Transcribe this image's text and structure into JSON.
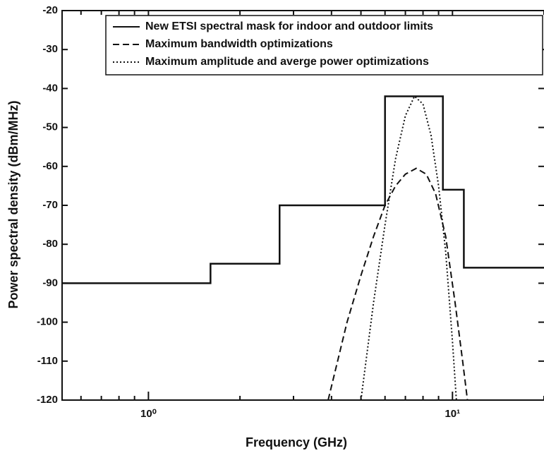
{
  "chart_data": {
    "type": "line",
    "xlabel": "Frequency (GHz)",
    "ylabel": "Power spectral density (dBm/MHz)",
    "xscale": "log",
    "xlim": [
      0.52,
      20
    ],
    "ylim": [
      -120,
      -20
    ],
    "xticks": [
      {
        "value": 1,
        "label": "10⁰"
      },
      {
        "value": 10,
        "label": "10¹"
      }
    ],
    "xminorticks": [
      0.6,
      0.7,
      0.8,
      0.9,
      2,
      3,
      4,
      5,
      6,
      7,
      8,
      9,
      20
    ],
    "yticks": [
      -20,
      -30,
      -40,
      -50,
      -60,
      -70,
      -80,
      -90,
      -100,
      -110,
      -120
    ],
    "legend": "upper right",
    "series": [
      {
        "name": "New ETSI spectral mask for indoor and outdoor limits",
        "color": "#111111",
        "style": "solid",
        "x": [
          0.52,
          1.6,
          1.6,
          2.7,
          2.7,
          6,
          6,
          9.3,
          9.3,
          10.9,
          10.9,
          20
        ],
        "values": [
          -90,
          -90,
          -85,
          -85,
          -70,
          -70,
          -42,
          -42,
          -66,
          -66,
          -86,
          -86
        ]
      },
      {
        "name": "Maximum bandwidth optimizations",
        "color": "#111111",
        "style": "dashed",
        "x": [
          3.9,
          4.5,
          5,
          5.5,
          6,
          6.5,
          7,
          7.6,
          8.2,
          8.8,
          9.5,
          10.2,
          10.8,
          11.2
        ],
        "values": [
          -120,
          -100,
          -88,
          -78,
          -70,
          -65,
          -62,
          -60.5,
          -62,
          -67,
          -78,
          -95,
          -110,
          -120
        ]
      },
      {
        "name": "Maximum amplitude and averge power optimizations",
        "color": "#111111",
        "style": "dotted",
        "x": [
          5.0,
          5.5,
          6.0,
          6.5,
          7.0,
          7.5,
          8.0,
          8.5,
          9.0,
          9.5,
          10.0,
          10.3
        ],
        "values": [
          -120,
          -95,
          -75,
          -58,
          -47,
          -42,
          -44,
          -52,
          -65,
          -82,
          -105,
          -120
        ]
      }
    ]
  }
}
